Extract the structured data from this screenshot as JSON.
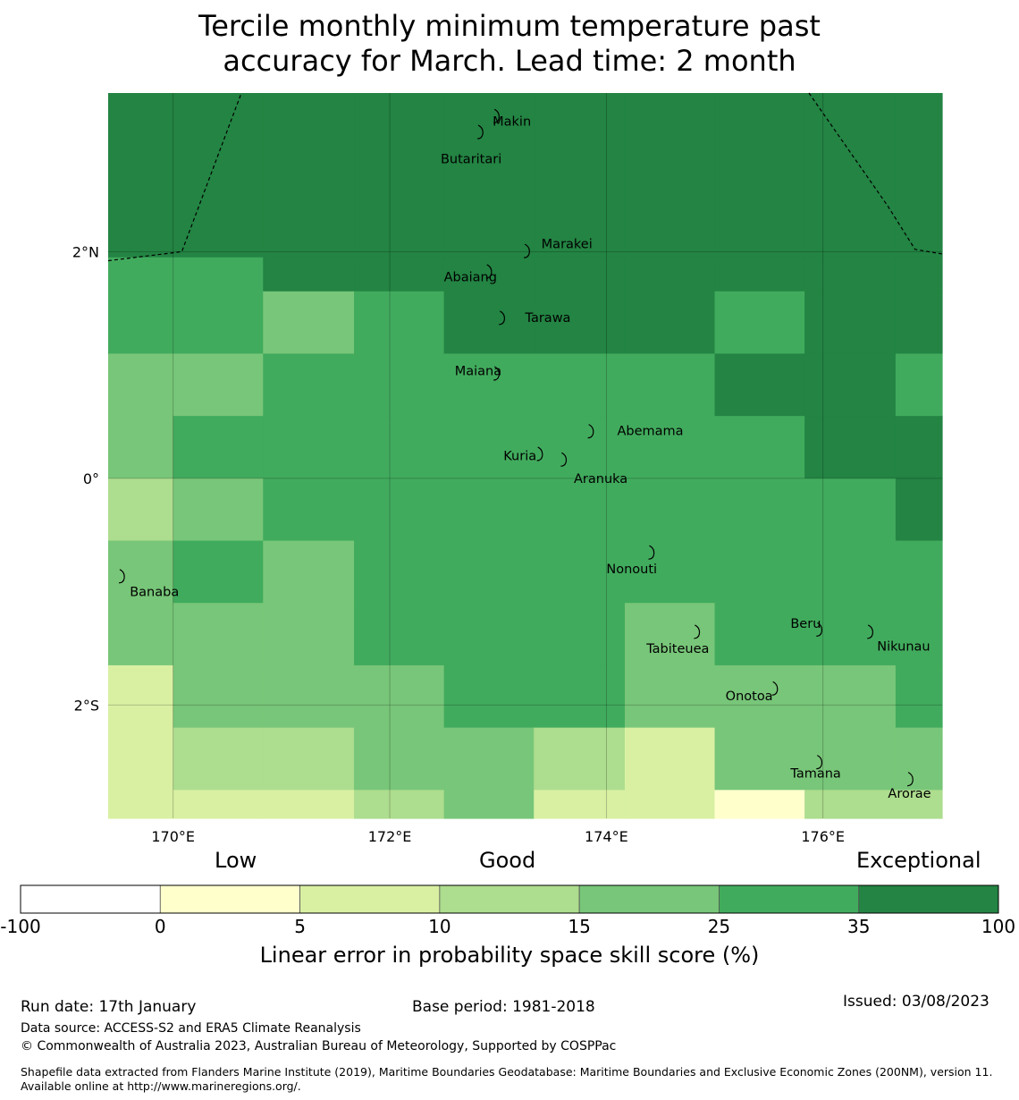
{
  "title": {
    "line1": "Tercile monthly minimum temperature past",
    "line2": "accuracy for March. Lead time: 2 month"
  },
  "map": {
    "lon_range": [
      169.4,
      177.1
    ],
    "lat_range": [
      -3.0,
      3.4
    ],
    "lon_ticks": [
      {
        "value": 170,
        "label": "170°E"
      },
      {
        "value": 172,
        "label": "172°E"
      },
      {
        "value": 174,
        "label": "174°E"
      },
      {
        "value": 176,
        "label": "176°E"
      }
    ],
    "lat_ticks": [
      {
        "value": 2,
        "label": "2°N"
      },
      {
        "value": 0,
        "label": "0°"
      },
      {
        "value": -2,
        "label": "2°S"
      }
    ],
    "grid_lon_edges": [
      169.4,
      170.0,
      170.83,
      171.67,
      172.5,
      173.33,
      174.17,
      175.0,
      175.83,
      176.67,
      177.1
    ],
    "grid_lat_edges": [
      3.4,
      1.95,
      1.65,
      1.1,
      0.55,
      0.0,
      -0.55,
      -1.1,
      -1.65,
      -2.2,
      -2.75,
      -3.0
    ],
    "skill_grid": [
      [
        6,
        6,
        6,
        6,
        6,
        6,
        6,
        6,
        6,
        6
      ],
      [
        5,
        5,
        6,
        6,
        6,
        6,
        6,
        6,
        6,
        6
      ],
      [
        5,
        5,
        4,
        5,
        6,
        6,
        6,
        5,
        6,
        6
      ],
      [
        4,
        4,
        5,
        5,
        5,
        5,
        5,
        6,
        6,
        5
      ],
      [
        4,
        5,
        5,
        5,
        5,
        5,
        5,
        5,
        6,
        6
      ],
      [
        3,
        4,
        5,
        5,
        5,
        5,
        5,
        5,
        5,
        6
      ],
      [
        4,
        5,
        4,
        5,
        5,
        5,
        5,
        5,
        5,
        5
      ],
      [
        4,
        4,
        4,
        5,
        5,
        5,
        4,
        5,
        5,
        5
      ],
      [
        2,
        4,
        4,
        4,
        5,
        5,
        4,
        4,
        4,
        5
      ],
      [
        2,
        3,
        3,
        4,
        4,
        3,
        2,
        4,
        4,
        4
      ],
      [
        2,
        2,
        2,
        3,
        4,
        2,
        2,
        1,
        3,
        3
      ]
    ],
    "boundaries": [
      {
        "name": "eez-boundary-west",
        "points": [
          [
            169.4,
            1.92
          ],
          [
            170.08,
            2.0
          ],
          [
            170.63,
            3.4
          ]
        ]
      },
      {
        "name": "eez-boundary-east",
        "points": [
          [
            175.87,
            3.4
          ],
          [
            176.6,
            2.4
          ],
          [
            176.85,
            2.02
          ],
          [
            177.1,
            1.98
          ]
        ]
      }
    ],
    "islands": [
      {
        "name": "Makin",
        "lon": 173.0,
        "lat": 3.2,
        "label_lon": 172.95,
        "label_lat": 3.15
      },
      {
        "name": "Butaritari",
        "lon": 172.85,
        "lat": 3.06,
        "label_lon": 172.47,
        "label_lat": 2.82
      },
      {
        "name": "Marakei",
        "lon": 173.28,
        "lat": 2.01,
        "label_lon": 173.4,
        "label_lat": 2.07
      },
      {
        "name": "Abaiang",
        "lon": 172.93,
        "lat": 1.83,
        "label_lon": 172.5,
        "label_lat": 1.78
      },
      {
        "name": "Tarawa",
        "lon": 173.05,
        "lat": 1.42,
        "label_lon": 173.25,
        "label_lat": 1.42
      },
      {
        "name": "Maiana",
        "lon": 173.0,
        "lat": 0.93,
        "label_lon": 172.6,
        "label_lat": 0.95
      },
      {
        "name": "Abemama",
        "lon": 173.87,
        "lat": 0.42,
        "label_lon": 174.1,
        "label_lat": 0.42
      },
      {
        "name": "Kuria",
        "lon": 173.4,
        "lat": 0.22,
        "label_lon": 173.05,
        "label_lat": 0.2
      },
      {
        "name": "Aranuka",
        "lon": 173.62,
        "lat": 0.17,
        "label_lon": 173.7,
        "label_lat": 0.0
      },
      {
        "name": "Nonouti",
        "lon": 174.43,
        "lat": -0.65,
        "label_lon": 174.0,
        "label_lat": -0.8
      },
      {
        "name": "Banaba",
        "lon": 169.54,
        "lat": -0.86,
        "label_lon": 169.6,
        "label_lat": -1.0
      },
      {
        "name": "Tabiteuea",
        "lon": 174.85,
        "lat": -1.35,
        "label_lon": 174.37,
        "label_lat": -1.5
      },
      {
        "name": "Beru",
        "lon": 175.98,
        "lat": -1.33,
        "label_lon": 175.7,
        "label_lat": -1.28
      },
      {
        "name": "Nikunau",
        "lon": 176.45,
        "lat": -1.35,
        "label_lon": 176.5,
        "label_lat": -1.48
      },
      {
        "name": "Onotoa",
        "lon": 175.57,
        "lat": -1.85,
        "label_lon": 175.1,
        "label_lat": -1.92
      },
      {
        "name": "Tamana",
        "lon": 175.98,
        "lat": -2.5,
        "label_lon": 175.7,
        "label_lat": -2.6
      },
      {
        "name": "Arorae",
        "lon": 176.82,
        "lat": -2.65,
        "label_lon": 176.6,
        "label_lat": -2.78
      }
    ]
  },
  "colorbar": {
    "categories": [
      "Low",
      "Good",
      "Exceptional"
    ],
    "ticks": [
      "-100",
      "0",
      "5",
      "10",
      "15",
      "25",
      "35",
      "100"
    ],
    "colors": [
      "#ffffff",
      "#ffffcc",
      "#d9f0a3",
      "#addd8e",
      "#78c679",
      "#41ab5d",
      "#238443"
    ],
    "label": "Linear error in probability space skill score (%)"
  },
  "footer": {
    "run_date": "Run date: 17th January",
    "base_period": "Base period: 1981-2018",
    "issued": "Issued: 03/08/2023",
    "data_source": "Data source: ACCESS-S2 and ERA5 Climate Reanalysis",
    "copyright": "© Commonwealth of Australia 2023, Australian Bureau of Meteorology, Supported by COSPPac",
    "shapefile": "Shapefile data extracted from Flanders Marine Institute (2019), Maritime Boundaries Geodatabase: Maritime Boundaries and Exclusive Economic Zones (200NM), version 11. Available online at http://www.marineregions.org/."
  }
}
